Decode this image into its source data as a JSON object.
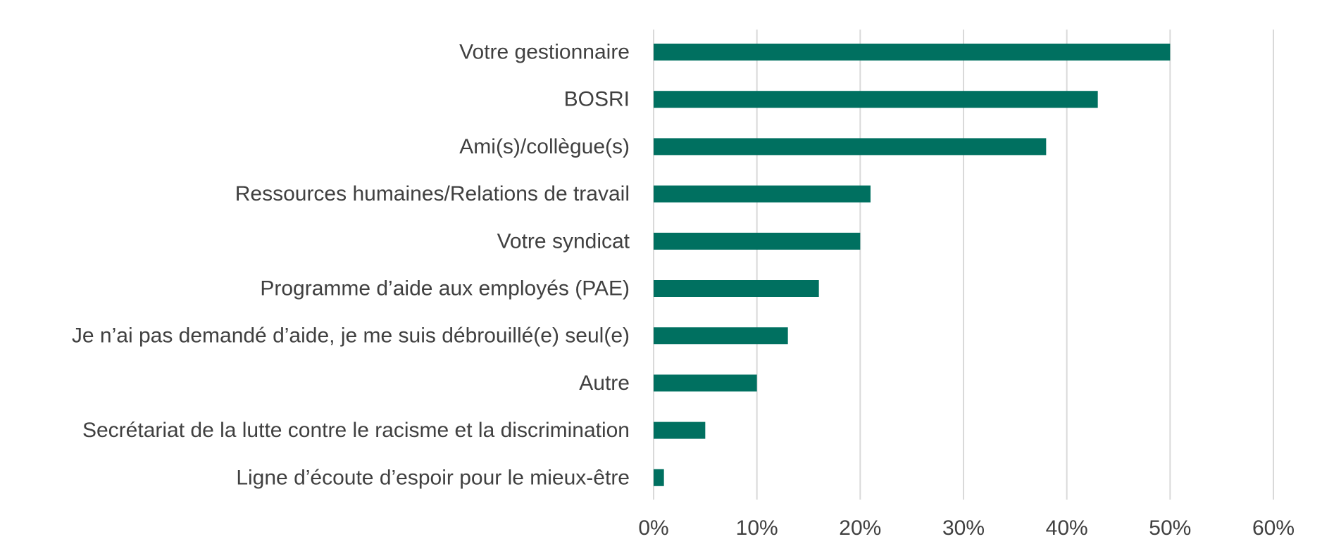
{
  "chart_data": {
    "type": "bar",
    "orientation": "horizontal",
    "categories": [
      "Votre gestionnaire",
      "BOSRI",
      "Ami(s)/collègue(s)",
      "Ressources humaines/Relations de travail",
      "Votre syndicat",
      "Programme d’aide aux employés (PAE)",
      "Je n’ai pas demandé d’aide, je me suis débrouillé(e) seul(e)",
      "Autre",
      "Secrétariat de la lutte contre le racisme et la discrimination",
      "Ligne d’écoute d’espoir pour le mieux-être"
    ],
    "values": [
      50,
      43,
      38,
      21,
      20,
      16,
      13,
      10,
      5,
      1
    ],
    "unit": "%",
    "xlim": [
      0,
      60
    ],
    "xticks": [
      0,
      10,
      20,
      30,
      40,
      50,
      60
    ],
    "xtick_labels": [
      "0%",
      "10%",
      "20%",
      "30%",
      "40%",
      "50%",
      "60%"
    ],
    "grid": "vertical",
    "bar_color": "#007060",
    "title": "",
    "xlabel": "",
    "ylabel": ""
  }
}
